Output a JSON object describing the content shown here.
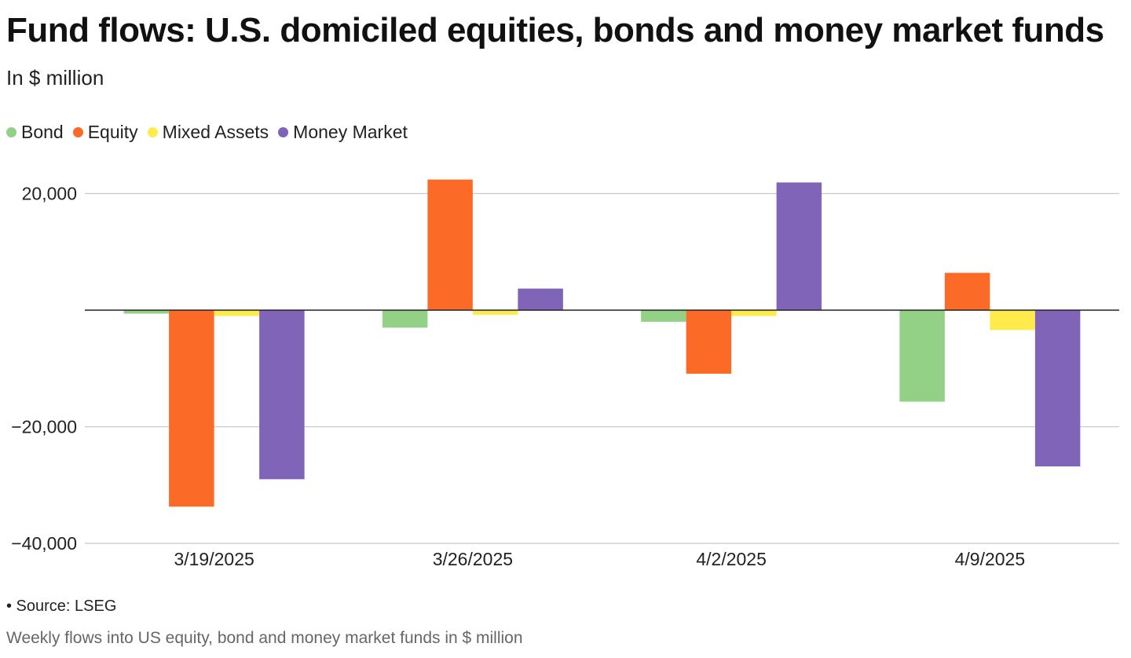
{
  "title": "Fund flows: U.S. domiciled equities, bonds and money market funds",
  "subtitle": "In $ million",
  "source": "• Source: LSEG",
  "caption": "Weekly flows into US equity, bond and money market funds in $ million",
  "colors": {
    "Bond": "#93d186",
    "Equity": "#fb6a26",
    "Mixed Assets": "#ffeb4c",
    "Money Market": "#7f64b7"
  },
  "chart_data": {
    "type": "bar",
    "categories": [
      "3/19/2025",
      "3/26/2025",
      "4/2/2025",
      "4/9/2025"
    ],
    "series": [
      {
        "name": "Bond",
        "values": [
          -600,
          -3000,
          -2000,
          -15700
        ]
      },
      {
        "name": "Equity",
        "values": [
          -33700,
          22400,
          -10900,
          6400
        ]
      },
      {
        "name": "Mixed Assets",
        "values": [
          -1000,
          -800,
          -1000,
          -3400
        ]
      },
      {
        "name": "Money Market",
        "values": [
          -29000,
          3700,
          21900,
          -26800
        ]
      }
    ],
    "yticks": [
      {
        "value": 20000,
        "label": "20,000"
      },
      {
        "value": 0,
        "label": ""
      },
      {
        "value": -20000,
        "label": "−20,000"
      },
      {
        "value": -40000,
        "label": "−40,000"
      }
    ],
    "ylim": [
      -40000,
      22500
    ],
    "xlabel": "",
    "ylabel": "",
    "legend": "top-left",
    "grid": true
  }
}
